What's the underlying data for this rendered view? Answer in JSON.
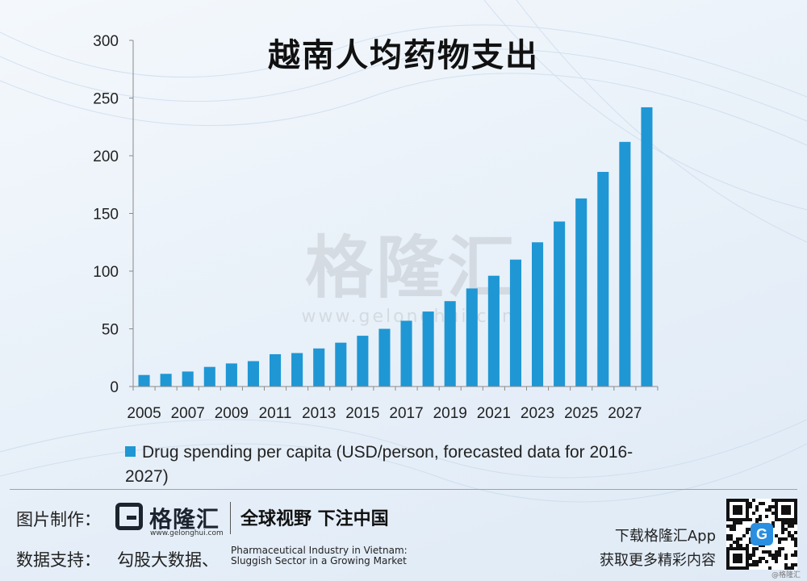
{
  "chart_data": {
    "type": "bar",
    "title": "越南人均药物支出",
    "x": [
      2005,
      2006,
      2007,
      2008,
      2009,
      2010,
      2011,
      2012,
      2013,
      2014,
      2015,
      2016,
      2017,
      2018,
      2019,
      2020,
      2021,
      2022,
      2023,
      2024,
      2025,
      2026,
      2027,
      2028
    ],
    "x_tick_labels": [
      "2005",
      "2007",
      "2009",
      "2011",
      "2013",
      "2015",
      "2017",
      "2019",
      "2021",
      "2023",
      "2025",
      "2027"
    ],
    "values": [
      10,
      11,
      13,
      17,
      20,
      22,
      28,
      29,
      33,
      38,
      44,
      50,
      57,
      65,
      74,
      85,
      96,
      110,
      125,
      143,
      163,
      186,
      212,
      242
    ],
    "ylim": [
      0,
      300
    ],
    "y_ticks": [
      0,
      50,
      100,
      150,
      200,
      250,
      300
    ],
    "series_name": "Drug spending per capita (USD/person, forecasted data for 2016-2027)",
    "legend_position": "bottom",
    "grid": false,
    "bar_color": "#1f97d4"
  },
  "watermark": {
    "text": "格隆汇",
    "url": "www.gelonghui.com"
  },
  "footer": {
    "made_by_label": "图片制作：",
    "logo_text": "格隆汇",
    "logo_url": "www.gelonghui.com",
    "slogan": "全球视野 下注中国",
    "support_label": "数据支持：",
    "support_source": "勾股大数据、",
    "source_line1": "Pharmaceutical Industry in Vietnam:",
    "source_line2": "Sluggish Sector in a Growing Market",
    "app_line1": "下载格隆汇App",
    "app_line2": "获取更多精彩内容",
    "qr_badge": "G",
    "corner_mark": "@格隆汇"
  }
}
